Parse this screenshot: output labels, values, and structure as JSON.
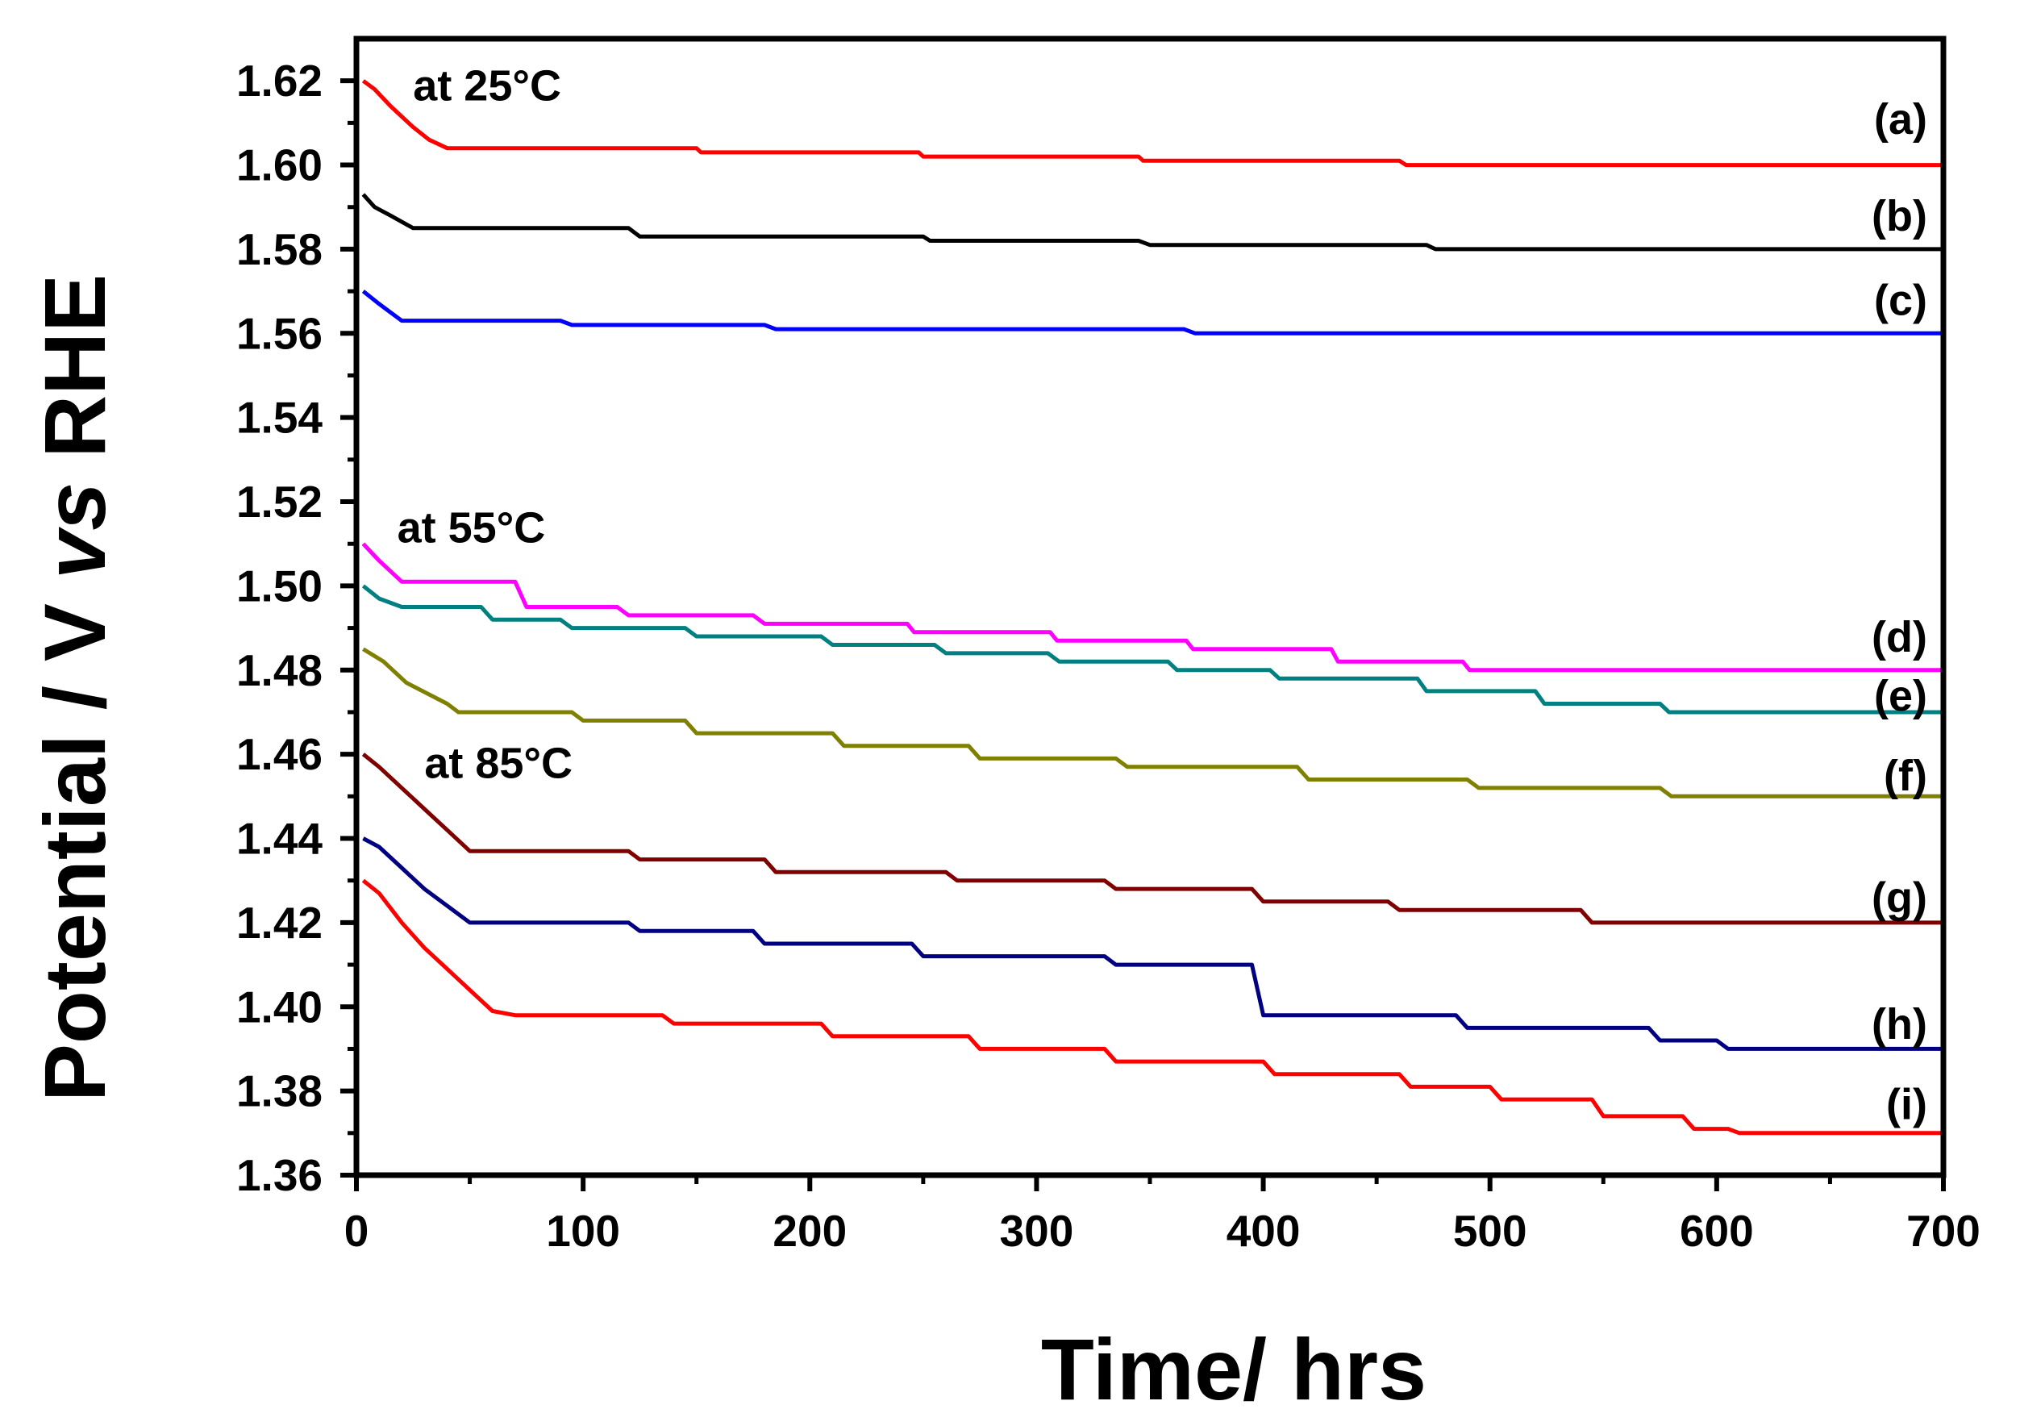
{
  "chart_data": {
    "type": "line",
    "title": "",
    "xlabel": "Time/ hrs",
    "ylabel_parts": [
      "Potential / V ",
      "vs",
      " RHE"
    ],
    "xlim": [
      0,
      700
    ],
    "ylim": [
      1.36,
      1.63
    ],
    "xticks": [
      0,
      100,
      200,
      300,
      400,
      500,
      600,
      700
    ],
    "yticks": [
      "1.36",
      "1.38",
      "1.40",
      "1.42",
      "1.44",
      "1.46",
      "1.48",
      "1.50",
      "1.52",
      "1.54",
      "1.56",
      "1.58",
      "1.60",
      "1.62"
    ],
    "grid": false,
    "annotations": [
      {
        "id": "t25",
        "text": "at 25°C",
        "x": 25,
        "y": 1.619
      },
      {
        "id": "t55",
        "text": "at 55°C",
        "x": 18,
        "y": 1.514
      },
      {
        "id": "t85",
        "text": "at 85°C",
        "x": 30,
        "y": 1.458
      }
    ],
    "series": [
      {
        "name": "(a)",
        "color": "#ff0000",
        "label_y": 1.611,
        "points": [
          [
            3,
            1.62
          ],
          [
            8,
            1.618
          ],
          [
            15,
            1.614
          ],
          [
            25,
            1.609
          ],
          [
            32,
            1.606
          ],
          [
            40,
            1.604
          ],
          [
            150,
            1.604
          ],
          [
            152,
            1.603
          ],
          [
            248,
            1.603
          ],
          [
            250,
            1.602
          ],
          [
            345,
            1.602
          ],
          [
            347,
            1.601
          ],
          [
            460,
            1.601
          ],
          [
            463,
            1.6
          ],
          [
            700,
            1.6
          ]
        ]
      },
      {
        "name": "(b)",
        "color": "#000000",
        "label_y": 1.588,
        "points": [
          [
            3,
            1.593
          ],
          [
            8,
            1.59
          ],
          [
            15,
            1.588
          ],
          [
            25,
            1.585
          ],
          [
            120,
            1.585
          ],
          [
            125,
            1.583
          ],
          [
            250,
            1.583
          ],
          [
            253,
            1.582
          ],
          [
            345,
            1.582
          ],
          [
            350,
            1.581
          ],
          [
            472,
            1.581
          ],
          [
            476,
            1.58
          ],
          [
            700,
            1.58
          ]
        ]
      },
      {
        "name": "(c)",
        "color": "#0000ff",
        "label_y": 1.568,
        "points": [
          [
            3,
            1.57
          ],
          [
            10,
            1.567
          ],
          [
            20,
            1.563
          ],
          [
            90,
            1.563
          ],
          [
            95,
            1.562
          ],
          [
            180,
            1.562
          ],
          [
            185,
            1.561
          ],
          [
            365,
            1.561
          ],
          [
            370,
            1.56
          ],
          [
            700,
            1.56
          ]
        ]
      },
      {
        "name": "(d)",
        "color": "#ff00ff",
        "label_y": 1.488,
        "points": [
          [
            3,
            1.51
          ],
          [
            10,
            1.506
          ],
          [
            20,
            1.501
          ],
          [
            70,
            1.501
          ],
          [
            75,
            1.495
          ],
          [
            115,
            1.495
          ],
          [
            120,
            1.493
          ],
          [
            175,
            1.493
          ],
          [
            180,
            1.491
          ],
          [
            243,
            1.491
          ],
          [
            246,
            1.489
          ],
          [
            306,
            1.489
          ],
          [
            309,
            1.487
          ],
          [
            366,
            1.487
          ],
          [
            369,
            1.485
          ],
          [
            430,
            1.485
          ],
          [
            433,
            1.482
          ],
          [
            488,
            1.482
          ],
          [
            491,
            1.48
          ],
          [
            700,
            1.48
          ]
        ]
      },
      {
        "name": "(e)",
        "color": "#008080",
        "label_y": 1.474,
        "points": [
          [
            3,
            1.5
          ],
          [
            10,
            1.497
          ],
          [
            20,
            1.495
          ],
          [
            55,
            1.495
          ],
          [
            60,
            1.492
          ],
          [
            90,
            1.492
          ],
          [
            95,
            1.49
          ],
          [
            145,
            1.49
          ],
          [
            150,
            1.488
          ],
          [
            205,
            1.488
          ],
          [
            210,
            1.486
          ],
          [
            255,
            1.486
          ],
          [
            260,
            1.484
          ],
          [
            305,
            1.484
          ],
          [
            310,
            1.482
          ],
          [
            358,
            1.482
          ],
          [
            362,
            1.48
          ],
          [
            403,
            1.48
          ],
          [
            407,
            1.478
          ],
          [
            468,
            1.478
          ],
          [
            472,
            1.475
          ],
          [
            520,
            1.475
          ],
          [
            524,
            1.472
          ],
          [
            575,
            1.472
          ],
          [
            579,
            1.47
          ],
          [
            700,
            1.47
          ]
        ]
      },
      {
        "name": "(f)",
        "color": "#808000",
        "label_y": 1.455,
        "points": [
          [
            3,
            1.485
          ],
          [
            12,
            1.482
          ],
          [
            22,
            1.477
          ],
          [
            40,
            1.472
          ],
          [
            45,
            1.47
          ],
          [
            95,
            1.47
          ],
          [
            100,
            1.468
          ],
          [
            145,
            1.468
          ],
          [
            150,
            1.465
          ],
          [
            210,
            1.465
          ],
          [
            215,
            1.462
          ],
          [
            270,
            1.462
          ],
          [
            275,
            1.459
          ],
          [
            335,
            1.459
          ],
          [
            340,
            1.457
          ],
          [
            415,
            1.457
          ],
          [
            420,
            1.454
          ],
          [
            490,
            1.454
          ],
          [
            495,
            1.452
          ],
          [
            575,
            1.452
          ],
          [
            580,
            1.45
          ],
          [
            700,
            1.45
          ]
        ]
      },
      {
        "name": "(g)",
        "color": "#800000",
        "label_y": 1.426,
        "points": [
          [
            3,
            1.46
          ],
          [
            10,
            1.457
          ],
          [
            20,
            1.452
          ],
          [
            30,
            1.447
          ],
          [
            40,
            1.442
          ],
          [
            50,
            1.437
          ],
          [
            120,
            1.437
          ],
          [
            125,
            1.435
          ],
          [
            180,
            1.435
          ],
          [
            185,
            1.432
          ],
          [
            260,
            1.432
          ],
          [
            265,
            1.43
          ],
          [
            330,
            1.43
          ],
          [
            335,
            1.428
          ],
          [
            395,
            1.428
          ],
          [
            400,
            1.425
          ],
          [
            455,
            1.425
          ],
          [
            460,
            1.423
          ],
          [
            540,
            1.423
          ],
          [
            545,
            1.42
          ],
          [
            700,
            1.42
          ]
        ]
      },
      {
        "name": "(h)",
        "color": "#000080",
        "label_y": 1.396,
        "points": [
          [
            3,
            1.44
          ],
          [
            10,
            1.438
          ],
          [
            20,
            1.433
          ],
          [
            30,
            1.428
          ],
          [
            40,
            1.424
          ],
          [
            50,
            1.42
          ],
          [
            120,
            1.42
          ],
          [
            125,
            1.418
          ],
          [
            175,
            1.418
          ],
          [
            180,
            1.415
          ],
          [
            245,
            1.415
          ],
          [
            250,
            1.412
          ],
          [
            330,
            1.412
          ],
          [
            335,
            1.41
          ],
          [
            395,
            1.41
          ],
          [
            400,
            1.398
          ],
          [
            485,
            1.398
          ],
          [
            490,
            1.395
          ],
          [
            570,
            1.395
          ],
          [
            575,
            1.392
          ],
          [
            600,
            1.392
          ],
          [
            605,
            1.39
          ],
          [
            700,
            1.39
          ]
        ]
      },
      {
        "name": "(i)",
        "color": "#ff0000",
        "label_y": 1.377,
        "points": [
          [
            3,
            1.43
          ],
          [
            10,
            1.427
          ],
          [
            20,
            1.42
          ],
          [
            30,
            1.414
          ],
          [
            40,
            1.409
          ],
          [
            50,
            1.404
          ],
          [
            60,
            1.399
          ],
          [
            70,
            1.398
          ],
          [
            135,
            1.398
          ],
          [
            140,
            1.396
          ],
          [
            205,
            1.396
          ],
          [
            210,
            1.393
          ],
          [
            270,
            1.393
          ],
          [
            275,
            1.39
          ],
          [
            330,
            1.39
          ],
          [
            335,
            1.387
          ],
          [
            400,
            1.387
          ],
          [
            405,
            1.384
          ],
          [
            460,
            1.384
          ],
          [
            465,
            1.381
          ],
          [
            500,
            1.381
          ],
          [
            505,
            1.378
          ],
          [
            545,
            1.378
          ],
          [
            550,
            1.374
          ],
          [
            585,
            1.374
          ],
          [
            590,
            1.371
          ],
          [
            605,
            1.371
          ],
          [
            610,
            1.37
          ],
          [
            700,
            1.37
          ]
        ]
      }
    ]
  }
}
